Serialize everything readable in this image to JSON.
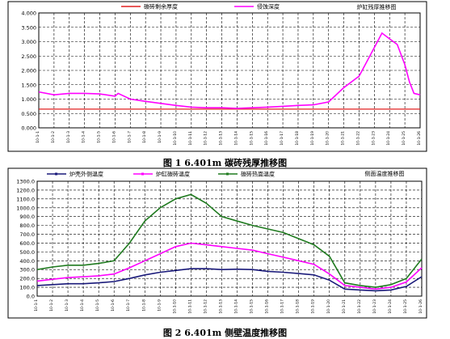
{
  "chart_data": [
    {
      "type": "line",
      "title": "炉缸残厚推移图",
      "ylim": [
        0,
        4.0
      ],
      "ytick_labels": [
        "0.000",
        "0.500",
        "1.000",
        "1.500",
        "2.000",
        "2.500",
        "3.000",
        "3.500",
        "4.000"
      ],
      "ytick_values": [
        0,
        0.5,
        1.0,
        1.5,
        2.0,
        2.5,
        3.0,
        3.5,
        4.0
      ],
      "xtick_labels": [
        "10-1-1",
        "10-1-2",
        "10-1-3",
        "10-1-4",
        "10-1-5",
        "10-1-6",
        "10-1-7",
        "10-1-8",
        "10-1-9",
        "10-1-10",
        "10-1-11",
        "10-1-12",
        "10-1-13",
        "10-1-14",
        "10-1-15",
        "10-1-16",
        "10-1-17",
        "10-1-18",
        "10-1-19",
        "10-1-20",
        "10-1-21",
        "10-1-22",
        "10-1-23",
        "10-1-24",
        "10-1-25",
        "10-1-26"
      ],
      "grid": true,
      "legend_position": "top",
      "series": [
        {
          "name": "碳砖剩余厚度",
          "color": "#e02020",
          "x": [
            0,
            25
          ],
          "values": [
            0.65,
            0.65
          ]
        },
        {
          "name": "侵蚀深度",
          "color": "#ff00ff",
          "x": [
            0,
            1,
            2,
            3,
            4,
            5,
            5.2,
            6,
            7,
            8,
            9,
            10,
            11,
            12,
            13,
            14,
            15,
            16,
            17,
            18,
            19,
            20,
            21,
            22,
            22.5,
            23,
            23.5,
            24,
            24.3,
            24.6,
            25
          ],
          "values": [
            1.25,
            1.15,
            1.2,
            1.2,
            1.18,
            1.1,
            1.2,
            1.0,
            0.92,
            0.85,
            0.78,
            0.72,
            0.7,
            0.7,
            0.68,
            0.7,
            0.72,
            0.75,
            0.78,
            0.8,
            0.9,
            1.4,
            1.8,
            2.8,
            3.3,
            3.1,
            2.9,
            2.2,
            1.6,
            1.2,
            1.15
          ]
        }
      ]
    },
    {
      "type": "line",
      "title": "侧面温度推移图",
      "ylim": [
        0,
        1300
      ],
      "ytick_labels": [
        "0.0",
        "100.0",
        "200.0",
        "300.0",
        "400.0",
        "500.0",
        "600.0",
        "700.0",
        "800.0",
        "900.0",
        "1000.0",
        "1100.0",
        "1200.0",
        "1300.0"
      ],
      "ytick_values": [
        0,
        100,
        200,
        300,
        400,
        500,
        600,
        700,
        800,
        900,
        1000,
        1100,
        1200,
        1300
      ],
      "xtick_labels": [
        "10-1-1",
        "10-1-2",
        "10-1-3",
        "10-1-4",
        "10-1-5",
        "10-1-6",
        "10-1-7",
        "10-1-8",
        "10-1-9",
        "10-1-10",
        "10-1-11",
        "10-1-12",
        "10-1-13",
        "10-1-14",
        "10-1-15",
        "10-1-16",
        "10-1-17",
        "10-1-18",
        "10-1-19",
        "10-1-20",
        "10-1-21",
        "10-1-22",
        "10-1-23",
        "10-1-24",
        "10-1-25",
        "10-1-26"
      ],
      "grid": true,
      "legend_position": "top",
      "series": [
        {
          "name": "炉壳外侧温度",
          "color": "#1a1a7a",
          "x": [
            0,
            1,
            2,
            3,
            4,
            5,
            6,
            7,
            8,
            9,
            10,
            11,
            12,
            13,
            14,
            15,
            16,
            17,
            18,
            19,
            20,
            21,
            22,
            23,
            24,
            25
          ],
          "values": [
            120,
            130,
            140,
            140,
            150,
            165,
            200,
            240,
            270,
            290,
            310,
            310,
            300,
            305,
            300,
            280,
            270,
            255,
            240,
            180,
            80,
            70,
            60,
            70,
            110,
            220
          ]
        },
        {
          "name": "炉缸碳砖温度",
          "color": "#ff00ff",
          "x": [
            0,
            1,
            2,
            3,
            4,
            5,
            6,
            7,
            8,
            9,
            10,
            11,
            12,
            13,
            14,
            15,
            16,
            17,
            18,
            19,
            20,
            21,
            22,
            23,
            24,
            25
          ],
          "values": [
            170,
            190,
            210,
            220,
            230,
            250,
            320,
            400,
            480,
            560,
            600,
            580,
            560,
            540,
            520,
            480,
            440,
            400,
            360,
            250,
            120,
            100,
            80,
            100,
            160,
            320
          ]
        },
        {
          "name": "碳砖热面温度",
          "color": "#1f7a1f",
          "x": [
            0,
            1,
            2,
            3,
            4,
            5,
            6,
            7,
            8,
            9,
            10,
            11,
            12,
            13,
            14,
            15,
            16,
            17,
            18,
            19,
            20,
            21,
            22,
            23,
            24,
            25
          ],
          "values": [
            300,
            330,
            350,
            350,
            370,
            400,
            600,
            850,
            1000,
            1100,
            1150,
            1050,
            900,
            850,
            800,
            760,
            720,
            650,
            580,
            450,
            150,
            120,
            100,
            130,
            200,
            420
          ]
        }
      ]
    }
  ],
  "captions": {
    "fig1": "图 1    6.401m 碳砖残厚推移图",
    "fig2": "图 2    6.401m 侧壁温度推移图"
  }
}
